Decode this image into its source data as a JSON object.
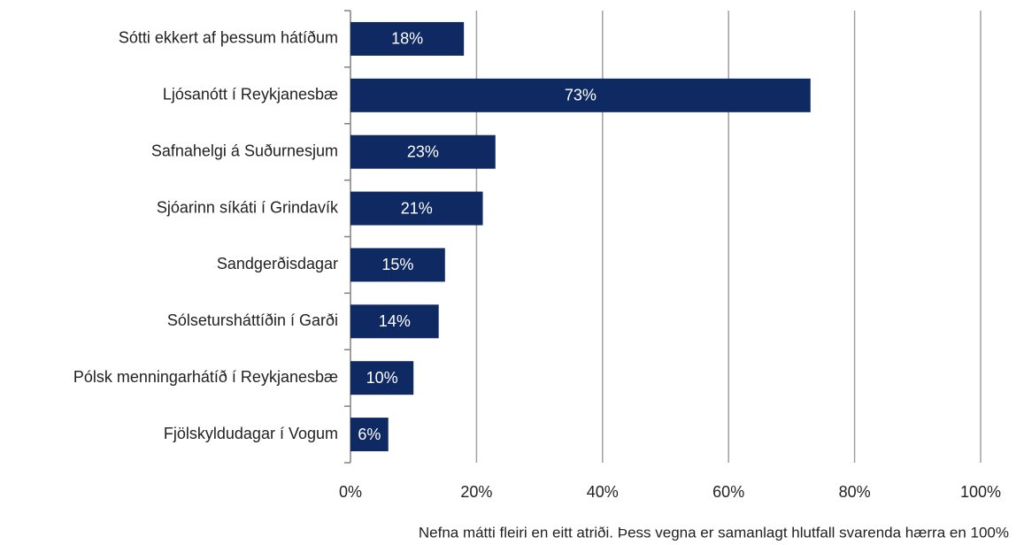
{
  "chart_data": {
    "type": "bar",
    "orientation": "horizontal",
    "categories": [
      "Sótti ekkert af þessum hátíðum",
      "Ljósanótt í Reykjanesbæ",
      "Safnahelgi á Suðurnesjum",
      "Sjóarinn síkáti í Grindavík",
      "Sandgerðisdagar",
      "Sólsetursháttíðin í Garði",
      "Pólsk menningarhátíð í Reykjanesbæ",
      "Fjölskyldudagar í Vogum"
    ],
    "values": [
      18,
      73,
      23,
      21,
      15,
      14,
      10,
      6
    ],
    "value_labels": [
      "18%",
      "73%",
      "23%",
      "21%",
      "15%",
      "14%",
      "10%",
      "6%"
    ],
    "color": "#0f2a63",
    "xlim": [
      0,
      100
    ],
    "xticks": [
      {
        "value": 0,
        "label": "0%"
      },
      {
        "value": 20,
        "label": "20%"
      },
      {
        "value": 40,
        "label": "40%"
      },
      {
        "value": 60,
        "label": "60%"
      },
      {
        "value": 80,
        "label": "80%"
      },
      {
        "value": 100,
        "label": "100%"
      }
    ],
    "grid": true,
    "annotation": "Nefna mátti fleiri en eitt atriði. Þess vegna er samanlagt hlutfall svarenda hærra en 100%"
  }
}
